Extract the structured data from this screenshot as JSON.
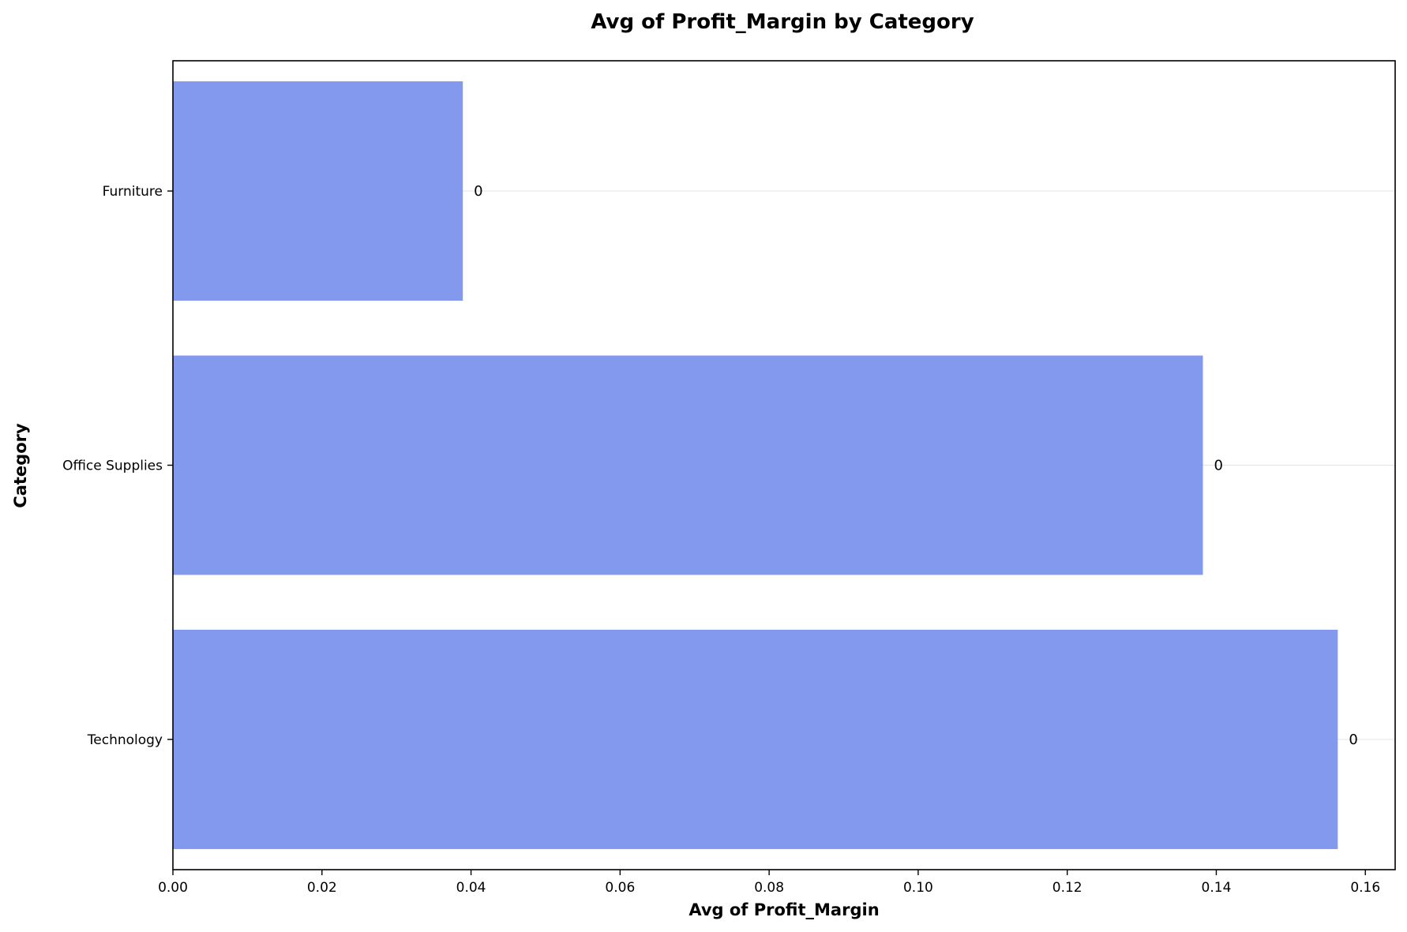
{
  "chart_data": {
    "type": "bar",
    "orientation": "horizontal",
    "title": "Avg of Profit_Margin by Category",
    "xlabel": "Avg of Profit_Margin",
    "ylabel": "Category",
    "categories": [
      "Furniture",
      "Office Supplies",
      "Technology"
    ],
    "values": [
      0.0389,
      0.1382,
      0.1563
    ],
    "data_labels": [
      "0",
      "0",
      "0"
    ],
    "xlim": [
      0,
      0.164
    ],
    "xticks": [
      0.0,
      0.02,
      0.04,
      0.06,
      0.08,
      0.1,
      0.12,
      0.14,
      0.16
    ],
    "xtick_labels": [
      "0.00",
      "0.02",
      "0.04",
      "0.06",
      "0.08",
      "0.10",
      "0.12",
      "0.14",
      "0.16"
    ],
    "grid": "horizontal",
    "legend": "none",
    "bar_color": "#8399ed",
    "grid_color": "#e6e6e6"
  }
}
